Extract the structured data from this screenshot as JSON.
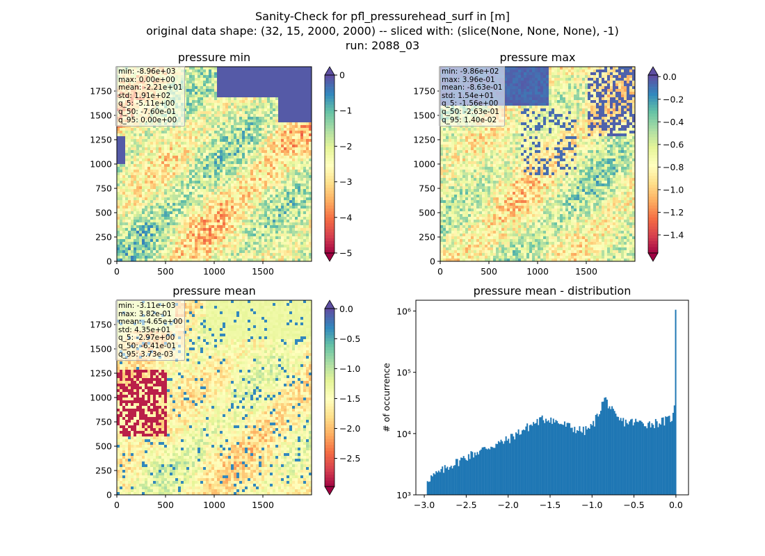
{
  "figure": {
    "title_line1": "Sanity-Check for pfl_pressurehead_surf in [m]",
    "title_line2": "original data shape: (32, 15, 2000, 2000) -- sliced with: (slice(None, None, None), -1)",
    "title_line3": "run: 2088_03"
  },
  "panels": {
    "min": {
      "title": "pressure min",
      "stats": [
        "min: -8.96e+03",
        "max: 0.00e+00",
        "mean: -2.21e+01",
        "std: 1.91e+02",
        "q_5: -5.11e+00",
        "q_50: -7.60e-01",
        "q_95: 0.00e+00"
      ],
      "colorbar": {
        "range": [
          -5,
          0
        ],
        "ticks": [
          0,
          -1,
          -2,
          -3,
          -4,
          -5
        ],
        "tick_labels": [
          "0",
          "−1",
          "−2",
          "−3",
          "−4",
          "−5"
        ],
        "extend": "both"
      }
    },
    "max": {
      "title": "pressure max",
      "stats": [
        "min: -9.86e+02",
        "max: 3.96e-01",
        "mean: -8.63e-01",
        "std: 1.54e+01",
        "q_5: -1.56e+00",
        "q_50: -2.63e-01",
        "q_95: 1.40e-02"
      ],
      "colorbar": {
        "range": [
          -1.56,
          0.014
        ],
        "ticks": [
          0.0,
          -0.2,
          -0.4,
          -0.6,
          -0.8,
          -1.0,
          -1.2,
          -1.4
        ],
        "tick_labels": [
          "0.0",
          "−0.2",
          "−0.4",
          "−0.6",
          "−0.8",
          "−1.0",
          "−1.2",
          "−1.4"
        ],
        "extend": "both"
      }
    },
    "mean": {
      "title": "pressure mean",
      "stats": [
        "min: -3.11e+03",
        "max: 3.82e-01",
        "mean: -4.65e+00",
        "std: 4.35e+01",
        "q_5: -2.97e+00",
        "q_50: -6.41e-01",
        "q_95: 3.73e-03"
      ],
      "colorbar": {
        "range": [
          -2.97,
          0.0037
        ],
        "ticks": [
          0.0,
          -0.5,
          -1.0,
          -1.5,
          -2.0,
          -2.5
        ],
        "tick_labels": [
          "0.0",
          "−0.5",
          "−1.0",
          "−1.5",
          "−2.0",
          "−2.5"
        ],
        "extend": "both"
      }
    },
    "hist": {
      "title": "pressure mean - distribution",
      "ylabel": "# of occurrence"
    }
  },
  "map_axes": {
    "x_ticks": [
      0,
      500,
      1000,
      1500
    ],
    "x_tick_labels": [
      "0",
      "500",
      "1000",
      "1500"
    ],
    "y_ticks": [
      0,
      250,
      500,
      750,
      1000,
      1250,
      1500,
      1750
    ],
    "y_tick_labels": [
      "0",
      "250",
      "500",
      "750",
      "1000",
      "1250",
      "1500",
      "1750"
    ],
    "range": [
      0,
      2000
    ]
  },
  "chart_data": [
    {
      "type": "heatmap",
      "title": "pressure min",
      "colormap": "Spectral",
      "x_range": [
        0,
        2000
      ],
      "y_range": [
        0,
        2000
      ],
      "color_range": [
        -5,
        0
      ],
      "colors": {
        "low": "#9e0142",
        "mid": "#ffffbf",
        "high": "#5e4fa2"
      }
    },
    {
      "type": "heatmap",
      "title": "pressure max",
      "colormap": "Spectral",
      "x_range": [
        0,
        2000
      ],
      "y_range": [
        0,
        2000
      ],
      "color_range": [
        -1.56,
        0.014
      ]
    },
    {
      "type": "heatmap",
      "title": "pressure mean",
      "colormap": "Spectral",
      "x_range": [
        0,
        2000
      ],
      "y_range": [
        0,
        2000
      ],
      "color_range": [
        -2.97,
        0.0037
      ]
    },
    {
      "type": "bar",
      "title": "pressure mean - distribution",
      "ylabel": "# of occurrence",
      "xlabel": "",
      "y_scale": "log",
      "xlim": [
        -3.1,
        0.15
      ],
      "ylim": [
        1000,
        1500000
      ],
      "x_ticks": [
        -3.0,
        -2.5,
        -2.0,
        -1.5,
        -1.0,
        -0.5,
        0.0
      ],
      "x_tick_labels": [
        "−3.0",
        "−2.5",
        "−2.0",
        "−1.5",
        "−1.0",
        "−0.5",
        "0.0"
      ],
      "y_ticks": [
        1000,
        10000,
        100000,
        1000000
      ],
      "y_tick_labels": [
        "10³",
        "10⁴",
        "10⁵",
        "10⁶"
      ],
      "bar_color": "#1f77b4",
      "profile": {
        "x": [
          -2.97,
          -2.9,
          -2.8,
          -2.7,
          -2.6,
          -2.5,
          -2.4,
          -2.3,
          -2.2,
          -2.1,
          -2.0,
          -1.9,
          -1.8,
          -1.7,
          -1.6,
          -1.5,
          -1.45,
          -1.4,
          -1.3,
          -1.2,
          -1.1,
          -1.0,
          -0.95,
          -0.9,
          -0.85,
          -0.8,
          -0.75,
          -0.7,
          -0.6,
          -0.5,
          -0.4,
          -0.3,
          -0.2,
          -0.1,
          -0.02,
          0.0
        ],
        "y": [
          1800,
          2000,
          2400,
          3000,
          3500,
          4200,
          4800,
          5500,
          6300,
          7000,
          8000,
          10000,
          12000,
          14500,
          17000,
          18000,
          16000,
          15000,
          13500,
          12000,
          11000,
          13000,
          18000,
          26000,
          38000,
          30000,
          22000,
          17000,
          15500,
          15500,
          15000,
          14500,
          15500,
          16500,
          20000,
          1050000
        ]
      }
    }
  ]
}
